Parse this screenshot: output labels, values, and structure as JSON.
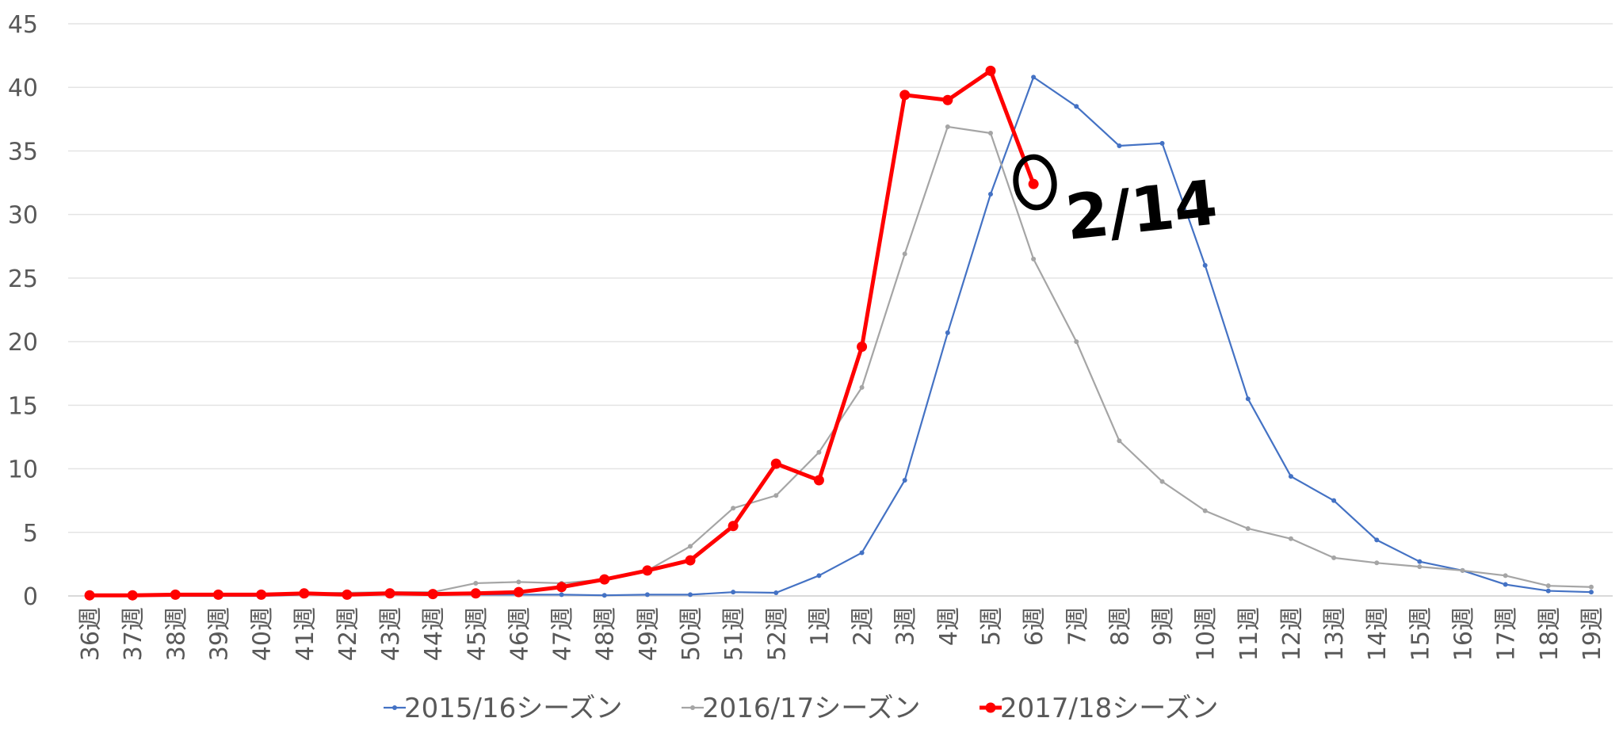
{
  "chart_data": {
    "type": "line",
    "title": "",
    "xlabel": "",
    "ylabel": "",
    "ylim": [
      0,
      45
    ],
    "y_ticks": [
      0,
      5,
      10,
      15,
      20,
      25,
      30,
      35,
      40,
      45
    ],
    "grid": "horizontal",
    "legend_position": "bottom",
    "categories": [
      "36週",
      "37週",
      "38週",
      "39週",
      "40週",
      "41週",
      "42週",
      "43週",
      "44週",
      "45週",
      "46週",
      "47週",
      "48週",
      "49週",
      "50週",
      "51週",
      "52週",
      "1週",
      "2週",
      "3週",
      "4週",
      "5週",
      "6週",
      "7週",
      "8週",
      "9週",
      "10週",
      "11週",
      "12週",
      "13週",
      "14週",
      "15週",
      "16週",
      "17週",
      "18週",
      "19週"
    ],
    "series": [
      {
        "name": "2015/16シーズン",
        "color": "#4472C4",
        "values": [
          0.0,
          0.0,
          0.0,
          0.0,
          0.0,
          0.1,
          0.1,
          0.1,
          0.1,
          0.1,
          0.1,
          0.1,
          0.05,
          0.1,
          0.1,
          0.3,
          0.25,
          1.6,
          3.4,
          9.1,
          20.7,
          31.6,
          40.8,
          38.5,
          35.4,
          35.6,
          26.0,
          15.5,
          9.4,
          7.5,
          4.4,
          2.7,
          2.0,
          0.9,
          0.4,
          0.3
        ]
      },
      {
        "name": "2016/17シーズン",
        "color": "#A5A5A5",
        "values": [
          0.0,
          0.0,
          0.1,
          0.1,
          0.1,
          0.2,
          0.25,
          0.3,
          0.3,
          1.0,
          1.1,
          1.0,
          1.3,
          2.0,
          3.9,
          6.9,
          7.9,
          11.3,
          16.4,
          26.9,
          36.9,
          36.4,
          26.5,
          20.0,
          12.2,
          9.0,
          6.7,
          5.3,
          4.5,
          3.0,
          2.6,
          2.3,
          2.0,
          1.6,
          0.8,
          0.7
        ]
      },
      {
        "name": "2017/18シーズン",
        "color": "#FF0000",
        "values": [
          0.05,
          0.05,
          0.1,
          0.1,
          0.1,
          0.2,
          0.1,
          0.2,
          0.15,
          0.2,
          0.3,
          0.7,
          1.3,
          2.0,
          2.8,
          5.5,
          10.4,
          9.1,
          19.6,
          39.4,
          39.0,
          41.3,
          32.4,
          null,
          null,
          null,
          null,
          null,
          null,
          null,
          null,
          null,
          null,
          null,
          null,
          null
        ]
      }
    ],
    "annotation": {
      "text": "2/14"
    }
  }
}
